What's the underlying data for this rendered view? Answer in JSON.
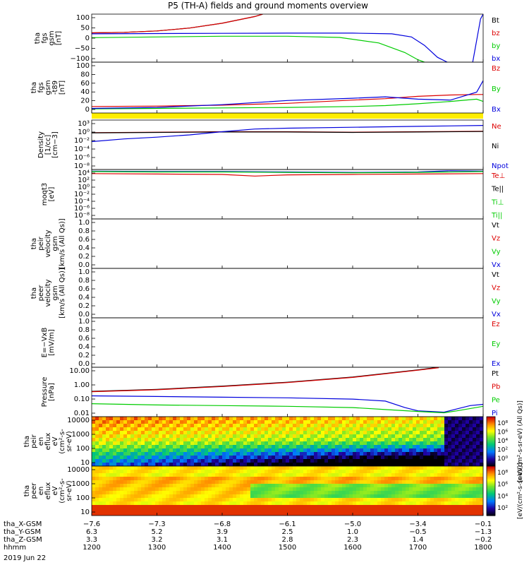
{
  "title": "P5 (TH-A) fields and ground moments overview",
  "chart_data": [
    {
      "type": "line",
      "ylabel": [
        "tha",
        "fgs",
        "gsm",
        "[nT]"
      ],
      "ylim": [
        -100,
        100
      ],
      "yticks": [
        "100",
        "50",
        "0",
        "−50",
        "−100"
      ],
      "legend": [
        {
          "name": "Bt",
          "color": "#000000"
        },
        {
          "name": "bz",
          "color": "#dd0000"
        },
        {
          "name": "by",
          "color": "#00cc00"
        },
        {
          "name": "bx",
          "color": "#0000dd"
        }
      ],
      "series": [
        {
          "name": "bt",
          "color": "#000000",
          "x": [
            1200,
            1250,
            1300,
            1350,
            1400,
            1450,
            1462
          ],
          "y": [
            22,
            24,
            30,
            42,
            62,
            90,
            100
          ]
        },
        {
          "name": "bz",
          "color": "#dd0000",
          "x": [
            1200,
            1250,
            1300,
            1350,
            1400,
            1450,
            1462
          ],
          "y": [
            22,
            24,
            30,
            42,
            62,
            90,
            100
          ]
        },
        {
          "name": "by",
          "color": "#00cc00",
          "x": [
            1200,
            1300,
            1400,
            1500,
            1580,
            1640,
            1680,
            1700,
            1710
          ],
          "y": [
            2,
            5,
            8,
            8,
            3,
            -20,
            -60,
            -90,
            -100
          ]
        },
        {
          "name": "bx",
          "color": "#0000dd",
          "x": [
            1200,
            1300,
            1400,
            1500,
            1600,
            1660,
            1690,
            1710,
            1730,
            1745
          ],
          "y": [
            18,
            19,
            20,
            21,
            21,
            18,
            5,
            -30,
            -80,
            -100
          ]
        },
        {
          "name": "bx_return",
          "color": "#0000dd",
          "x": [
            1784,
            1788,
            1792,
            1796,
            1800
          ],
          "y": [
            -100,
            -40,
            20,
            80,
            100
          ]
        }
      ]
    },
    {
      "type": "line",
      "ylabel": [
        "tha",
        "fgs",
        "gsm",
        "-t89",
        "[nT]"
      ],
      "ylim": [
        -10,
        100
      ],
      "yticks": [
        "100",
        "80",
        "60",
        "40",
        "20",
        "0"
      ],
      "legend": [
        {
          "name": "Bz",
          "color": "#dd0000"
        },
        {
          "name": "By",
          "color": "#00cc00"
        },
        {
          "name": "Bx",
          "color": "#0000dd"
        }
      ],
      "series": [
        {
          "name": "Bz",
          "color": "#dd0000",
          "x": [
            1200,
            1300,
            1400,
            1500,
            1600,
            1650,
            1700,
            1750,
            1790,
            1800
          ],
          "y": [
            4,
            5,
            7,
            11,
            18,
            21,
            26,
            29,
            30,
            30
          ]
        },
        {
          "name": "By",
          "color": "#00cc00",
          "x": [
            1200,
            1300,
            1400,
            1500,
            1600,
            1650,
            1700,
            1750,
            1790,
            1800
          ],
          "y": [
            -1,
            0,
            1,
            2,
            4,
            6,
            10,
            15,
            20,
            15
          ]
        },
        {
          "name": "Bx",
          "color": "#0000dd",
          "x": [
            1200,
            1300,
            1400,
            1500,
            1600,
            1650,
            1700,
            1750,
            1790,
            1800
          ],
          "y": [
            0,
            2,
            8,
            17,
            22,
            25,
            20,
            18,
            35,
            60
          ]
        }
      ]
    },
    {
      "type": "line",
      "ylabel": [
        "Density",
        "[1/cc]",
        "[cm−3]"
      ],
      "yscale": "log",
      "ylim": [
        -8,
        3
      ],
      "yticks": [
        "10³",
        "10⁰",
        "10⁻²",
        "10⁻⁴",
        "10⁻⁶",
        "10⁻⁸"
      ],
      "legend": [
        {
          "name": "Ne",
          "color": "#dd0000"
        },
        {
          "name": "Ni",
          "color": "#000000"
        },
        {
          "name": "Npot",
          "color": "#0000dd"
        }
      ],
      "series": [
        {
          "name": "Ne",
          "color": "#dd0000",
          "x": [
            1200,
            1300,
            1400,
            1500,
            1600,
            1700,
            1800
          ],
          "y": [
            0.2,
            0.3,
            0.4,
            0.4,
            0.3,
            0.4,
            0.5
          ]
        },
        {
          "name": "Ni",
          "color": "#000000",
          "x": [
            1200,
            1300,
            1400,
            1500,
            1600,
            1700,
            1800
          ],
          "y": [
            0.15,
            0.25,
            0.35,
            0.35,
            0.25,
            0.35,
            0.45
          ]
        },
        {
          "name": "Npot",
          "color": "#0000dd",
          "x": [
            1200,
            1250,
            1300,
            1350,
            1400,
            1450,
            1500,
            1600,
            1700,
            1800
          ],
          "y": [
            -1.8,
            -1.2,
            -0.8,
            -0.3,
            0.4,
            1.0,
            1.2,
            1.4,
            1.6,
            1.8
          ]
        }
      ]
    },
    {
      "type": "line",
      "ylabel": [
        "moqt3",
        "[eV]"
      ],
      "yscale": "log",
      "ylim": [
        -8,
        4
      ],
      "yticks": [
        "10⁴",
        "10²",
        "10⁰",
        "10⁻²",
        "10⁻⁴",
        "10⁻⁶",
        "10⁻⁸"
      ],
      "legend": [
        {
          "name": "Te⊥",
          "color": "#dd0000"
        },
        {
          "name": "Te||",
          "color": "#000000"
        },
        {
          "name": "Ti⊥",
          "color": "#00cc00"
        },
        {
          "name": "Ti||",
          "color": "#00cc00"
        }
      ],
      "series": [
        {
          "name": "Ti",
          "color": "#0000dd",
          "x": [
            1200,
            1300,
            1400,
            1500,
            1600,
            1700,
            1750,
            1800
          ],
          "y": [
            3.6,
            3.5,
            3.5,
            3.4,
            3.3,
            3.4,
            3.7,
            3.6
          ]
        },
        {
          "name": "Ti||",
          "color": "#00cc00",
          "x": [
            1200,
            1300,
            1400,
            1500,
            1600,
            1700,
            1800
          ],
          "y": [
            3.5,
            3.4,
            3.4,
            3.3,
            3.2,
            3.3,
            3.5
          ]
        },
        {
          "name": "Te",
          "color": "#dd0000",
          "x": [
            1200,
            1300,
            1400,
            1450,
            1500,
            1600,
            1700,
            1800
          ],
          "y": [
            3.0,
            2.9,
            2.8,
            2.4,
            2.7,
            2.8,
            2.9,
            3.0
          ]
        }
      ]
    },
    {
      "type": "line",
      "ylabel": [
        "tha",
        "peir",
        "velocity",
        "gsm",
        "[km/s (All Qs)]"
      ],
      "ylim": [
        0,
        1
      ],
      "yticks": [
        "1.0",
        "0.8",
        "0.6",
        "0.4",
        "0.2",
        "0.0"
      ],
      "legend": [
        {
          "name": "Vt",
          "color": "#000000"
        },
        {
          "name": "Vz",
          "color": "#dd0000"
        },
        {
          "name": "Vy",
          "color": "#00cc00"
        },
        {
          "name": "Vx",
          "color": "#0000dd"
        }
      ],
      "series": []
    },
    {
      "type": "line",
      "ylabel": [
        "tha",
        "peer",
        "velocity",
        "gsm",
        "[km/s (All Qs)]"
      ],
      "ylim": [
        0,
        1
      ],
      "yticks": [
        "1.0",
        "0.8",
        "0.6",
        "0.4",
        "0.2",
        "0.0"
      ],
      "legend": [
        {
          "name": "Vt",
          "color": "#000000"
        },
        {
          "name": "Vz",
          "color": "#dd0000"
        },
        {
          "name": "Vy",
          "color": "#00cc00"
        },
        {
          "name": "Vx",
          "color": "#0000dd"
        }
      ],
      "series": []
    },
    {
      "type": "line",
      "ylabel": [
        "E=−VxB",
        "[mV/m]"
      ],
      "ylim": [
        0,
        1
      ],
      "yticks": [
        "1.0",
        "0.8",
        "0.6",
        "0.4",
        "0.2",
        "0.0"
      ],
      "legend": [
        {
          "name": "Ez",
          "color": "#dd0000"
        },
        {
          "name": "Ey",
          "color": "#00cc00"
        },
        {
          "name": "Ex",
          "color": "#0000dd"
        }
      ],
      "series": []
    },
    {
      "type": "line",
      "ylabel": [
        "Pressure",
        "[nPa]"
      ],
      "yscale": "log",
      "ylim": [
        -2.3,
        1.5
      ],
      "yticks": [
        "10.00",
        "1.00",
        "0.10",
        "0.01"
      ],
      "legend": [
        {
          "name": "Pt",
          "color": "#000000"
        },
        {
          "name": "Pb",
          "color": "#dd0000"
        },
        {
          "name": "Pe",
          "color": "#00cc00"
        },
        {
          "name": "Pi",
          "color": "#0000dd"
        }
      ],
      "series": [
        {
          "name": "Pt",
          "color": "#000000",
          "x": [
            1200,
            1300,
            1400,
            1500,
            1600,
            1700,
            1732
          ],
          "y": [
            -0.35,
            -0.2,
            0.05,
            0.35,
            0.75,
            1.3,
            1.5
          ]
        },
        {
          "name": "Pb",
          "color": "#dd0000",
          "x": [
            1200,
            1300,
            1400,
            1500,
            1600,
            1700,
            1732
          ],
          "y": [
            -0.38,
            -0.23,
            0.02,
            0.32,
            0.72,
            1.27,
            1.47
          ]
        },
        {
          "name": "Pi",
          "color": "#0000dd",
          "x": [
            1200,
            1300,
            1400,
            1500,
            1600,
            1650,
            1680,
            1700,
            1720,
            1740,
            1760,
            1780,
            1800
          ],
          "y": [
            -0.7,
            -0.75,
            -0.8,
            -0.85,
            -0.95,
            -1.1,
            -1.6,
            -1.85,
            -1.9,
            -1.95,
            -1.7,
            -1.45,
            -1.35
          ]
        },
        {
          "name": "Pe",
          "color": "#00cc00",
          "x": [
            1200,
            1300,
            1400,
            1500,
            1600,
            1650,
            1700,
            1720,
            1740,
            1760,
            1800
          ],
          "y": [
            -1.3,
            -1.4,
            -1.45,
            -1.5,
            -1.6,
            -1.75,
            -1.9,
            -1.95,
            -2.0,
            -1.85,
            -1.5
          ]
        }
      ]
    },
    {
      "type": "heatmap",
      "ylabel": [
        "tha",
        "peir",
        "en",
        "eflux",
        "eV",
        "(cm²-s-",
        "sr-eV)"
      ],
      "yscale": "log",
      "ylim": [
        0.9,
        4.3
      ],
      "yticks": [
        "10000",
        "1000",
        "100",
        "10"
      ],
      "colorbar_label": "[eV/(cm²-s-sr-eV) (All Qs)]",
      "colorbar_ticks": [
        "10⁸",
        "10⁶",
        "10⁴",
        "10²",
        "10⁰"
      ]
    },
    {
      "type": "heatmap",
      "ylabel": [
        "tha",
        "peer",
        "en",
        "eflux",
        "eV",
        "(cm²-s-",
        "sr-eV)"
      ],
      "yscale": "log",
      "ylim": [
        0.9,
        4.3
      ],
      "yticks": [
        "10000",
        "1000",
        "100",
        "10"
      ],
      "colorbar_label": "[eV/(cm²-s-sr-eV)]",
      "colorbar_ticks": [
        "10⁸",
        "10⁶",
        "10⁴",
        "10²"
      ]
    }
  ],
  "xaxis": {
    "rows": [
      {
        "label": "tha_X-GSM",
        "values": [
          "−7.6",
          "−7.3",
          "−6.8",
          "−6.1",
          "−5.0",
          "−3.4",
          "−0.1"
        ]
      },
      {
        "label": "tha_Y-GSM",
        "values": [
          "6.3",
          "5.2",
          "3.9",
          "2.5",
          "1.0",
          "−0.5",
          "−1.3"
        ]
      },
      {
        "label": "tha_Z-GSM",
        "values": [
          "3.3",
          "3.2",
          "3.1",
          "2.8",
          "2.3",
          "1.4",
          "−0.2"
        ]
      },
      {
        "label": "hhmm",
        "values": [
          "1200",
          "1300",
          "1400",
          "1500",
          "1600",
          "1700",
          "1800"
        ]
      }
    ],
    "date": "2019 Jun 22",
    "range": [
      1200,
      1800
    ]
  },
  "colors": {
    "yellow_band": "#ffee00"
  }
}
